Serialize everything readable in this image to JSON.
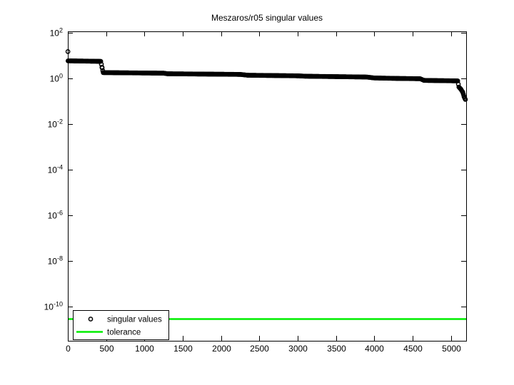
{
  "chart_data": {
    "type": "scatter",
    "title": "Meszaros/r05 singular values",
    "xlabel": "",
    "ylabel": "",
    "grid": false,
    "x_axis": {
      "min": 0,
      "max": 5200,
      "ticks": [
        0,
        500,
        1000,
        1500,
        2000,
        2500,
        3000,
        3500,
        4000,
        4500,
        5000
      ]
    },
    "y_axis": {
      "scale": "log10",
      "tick_exponents": [
        2,
        0,
        -2,
        -4,
        -6,
        -8,
        -10
      ],
      "top_exponent": 2.06,
      "bottom_exponent": -11.5
    },
    "series": [
      {
        "name": "singular values",
        "type": "scatter",
        "marker": "circle",
        "color": "#000000",
        "n_points": 5190,
        "points": [
          [
            1,
            15
          ],
          [
            3,
            5.9
          ],
          [
            430,
            5.6
          ],
          [
            448,
            2.9
          ],
          [
            462,
            1.8
          ],
          [
            1250,
            1.7
          ],
          [
            1300,
            1.6
          ],
          [
            2250,
            1.5
          ],
          [
            2350,
            1.38
          ],
          [
            3000,
            1.3
          ],
          [
            3100,
            1.25
          ],
          [
            3900,
            1.15
          ],
          [
            4000,
            1.05
          ],
          [
            4300,
            1.0
          ],
          [
            4600,
            0.97
          ],
          [
            4650,
            0.82
          ],
          [
            5090,
            0.78
          ],
          [
            5105,
            0.42
          ],
          [
            5130,
            0.34
          ],
          [
            5155,
            0.25
          ],
          [
            5175,
            0.15
          ],
          [
            5190,
            0.12
          ]
        ]
      },
      {
        "name": "tolerance",
        "type": "hline",
        "color": "#00ee00",
        "value": 3e-11
      }
    ],
    "legend": {
      "position": "bottom-left",
      "entries": [
        {
          "label": "singular values",
          "symbol": "circle-marker",
          "color": "#000000"
        },
        {
          "label": "tolerance",
          "symbol": "line",
          "color": "#00ee00"
        }
      ]
    }
  }
}
